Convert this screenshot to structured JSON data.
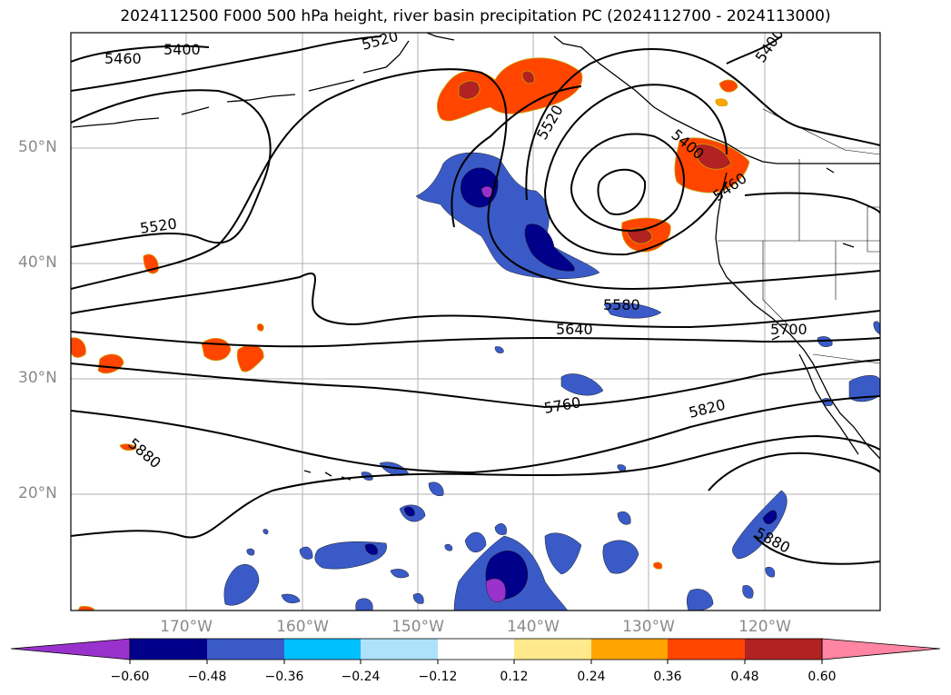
{
  "title": "2024112500 F000 500 hPa height, river basin precipitation PC (2024112700 - 2024113000)",
  "lat_labels": [
    "50°N",
    "40°N",
    "30°N",
    "20°N"
  ],
  "lon_labels": [
    "170°W",
    "160°W",
    "150°W",
    "140°W",
    "130°W",
    "120°W"
  ],
  "contour_labels": [
    "5400",
    "5460",
    "5520",
    "5520",
    "5580",
    "5640",
    "5700",
    "5760",
    "5820",
    "5880",
    "5880",
    "5400",
    "5460",
    "5400",
    "5520"
  ],
  "colorbar": {
    "ticks": [
      "−0.60",
      "−0.48",
      "−0.36",
      "−0.24",
      "−0.12",
      "0.12",
      "0.24",
      "0.36",
      "0.48",
      "0.60"
    ],
    "colors": [
      "#9932CC",
      "#00008B",
      "#3A5BC7",
      "#00BFFF",
      "#ADE2FA",
      "#FFFFFF",
      "#FFE98C",
      "#FFA500",
      "#FF4500",
      "#B22222",
      "#FF85A2"
    ]
  }
}
